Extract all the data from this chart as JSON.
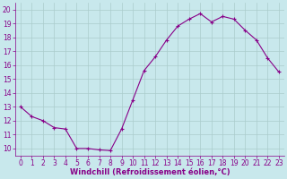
{
  "x": [
    0,
    1,
    2,
    3,
    4,
    5,
    6,
    7,
    8,
    9,
    10,
    11,
    12,
    13,
    14,
    15,
    16,
    17,
    18,
    19,
    20,
    21,
    22,
    23
  ],
  "y": [
    13,
    12.3,
    12.0,
    11.5,
    11.4,
    10.0,
    10.0,
    9.9,
    9.85,
    11.4,
    13.5,
    15.6,
    16.6,
    17.8,
    18.8,
    19.3,
    19.7,
    19.1,
    19.5,
    19.3,
    18.5,
    17.8,
    16.5,
    15.5
  ],
  "line_color": "#880088",
  "marker": "+",
  "bg_color": "#c8e8ec",
  "grid_color": "#aacccc",
  "xlabel": "Windchill (Refroidissement éolien,°C)",
  "ylim": [
    9.5,
    20.5
  ],
  "yticks": [
    10,
    11,
    12,
    13,
    14,
    15,
    16,
    17,
    18,
    19,
    20
  ],
  "xticks": [
    0,
    1,
    2,
    3,
    4,
    5,
    6,
    7,
    8,
    9,
    10,
    11,
    12,
    13,
    14,
    15,
    16,
    17,
    18,
    19,
    20,
    21,
    22,
    23
  ],
  "font_color": "#880088",
  "tick_fontsize": 5.5,
  "xlabel_fontsize": 6.0
}
